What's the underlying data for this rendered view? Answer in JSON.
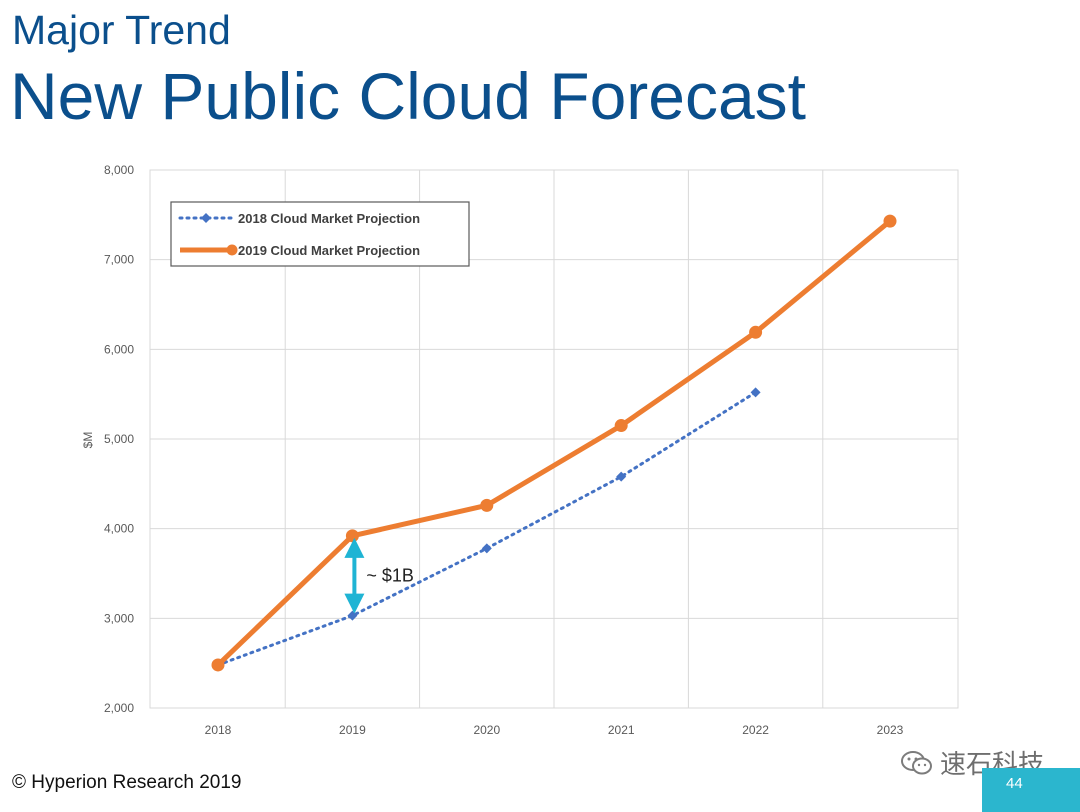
{
  "slide": {
    "subtitle": "Major Trend",
    "title": "New Public Cloud Forecast",
    "copyright": "© Hyperion Research 2019",
    "page_number": "44",
    "watermark": "速石科技"
  },
  "colors": {
    "title": "#0b4f8c",
    "series_2018": "#4472c4",
    "series_2019": "#ed7d31",
    "annotation": "#1fb4d4",
    "grid": "#d9d9d9",
    "axis_text": "#595959"
  },
  "chart_data": {
    "type": "line",
    "title": "",
    "xlabel": "",
    "ylabel": "$M",
    "ylim": [
      2000,
      8000
    ],
    "y_ticks": [
      "2,000",
      "3,000",
      "4,000",
      "5,000",
      "6,000",
      "7,000",
      "8,000"
    ],
    "y_tick_values": [
      2000,
      3000,
      4000,
      5000,
      6000,
      7000,
      8000
    ],
    "x": [
      "2018",
      "2019",
      "2020",
      "2021",
      "2022",
      "2023"
    ],
    "grid": true,
    "legend_position": "top-left",
    "series": [
      {
        "name": "2018 Cloud Market Projection",
        "style": "dotted-diamond",
        "values": [
          2480,
          3030,
          3780,
          4580,
          5520,
          null
        ]
      },
      {
        "name": "2019 Cloud Market Projection",
        "style": "solid-circle",
        "values": [
          2480,
          3920,
          4260,
          5150,
          6190,
          7430
        ]
      }
    ],
    "annotations": [
      {
        "text": "~ $1B",
        "x": "2019",
        "from": 3030,
        "to": 3920
      }
    ]
  }
}
